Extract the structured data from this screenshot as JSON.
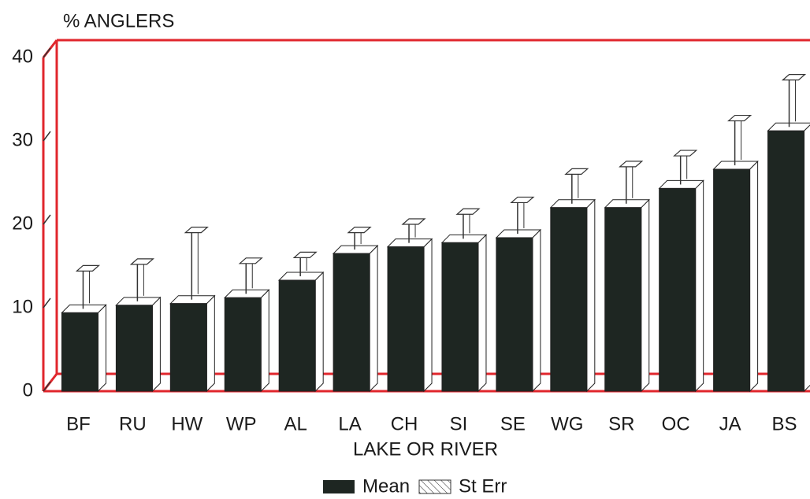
{
  "chart_data": {
    "type": "bar",
    "y_label": "% ANGLERS",
    "x_label": "LAKE OR RIVER",
    "categories": [
      "BF",
      "RU",
      "HW",
      "WP",
      "AL",
      "LA",
      "CH",
      "SI",
      "SE",
      "WG",
      "SR",
      "OC",
      "JA",
      "BS"
    ],
    "series": [
      {
        "name": "Mean",
        "color": "#1e2622",
        "values": [
          9.4,
          10.3,
          10.5,
          11.2,
          13.3,
          16.5,
          17.3,
          17.8,
          18.4,
          22.0,
          22.0,
          24.3,
          26.6,
          31.2
        ]
      },
      {
        "name": "St Err",
        "color": "#ffffff",
        "values": [
          5.0,
          4.9,
          8.5,
          4.1,
          2.7,
          2.5,
          2.7,
          3.4,
          4.2,
          4.0,
          4.9,
          3.9,
          5.8,
          6.1
        ]
      }
    ],
    "ylim": [
      0,
      40
    ],
    "yticks": [
      0,
      10,
      20,
      30,
      40
    ],
    "grid": false,
    "frame_color": "#e0262c"
  }
}
